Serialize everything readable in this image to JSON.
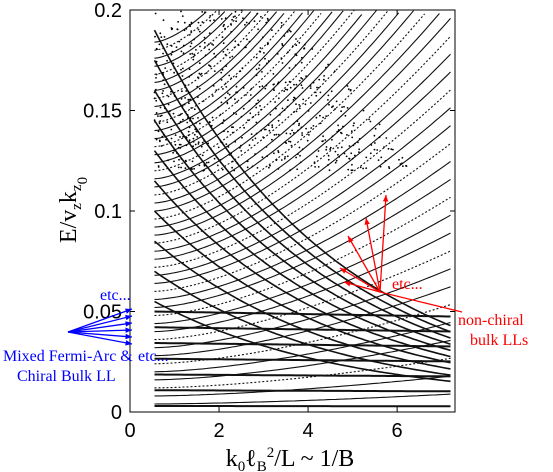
{
  "chart_data": {
    "type": "scatter",
    "title": "",
    "xlabel": "k₀ℓB²/L ~ 1/B",
    "ylabel": "E/vzkz0",
    "xlim": [
      0,
      7.3
    ],
    "ylim": [
      0,
      0.2
    ],
    "xticks": [
      "0",
      "2",
      "4",
      "6"
    ],
    "xtick_values": [
      0,
      2,
      4,
      6
    ],
    "yticks": [
      "0",
      "0.05",
      "0.1",
      "0.15",
      "0.2"
    ],
    "ytick_values": [
      0,
      0.05,
      0.1,
      0.15,
      0.2
    ],
    "x_range_data": [
      0.55,
      7.2
    ],
    "level_families": {
      "flat_levels": {
        "count": 7,
        "e_min": 0.003,
        "e_max": 0.05,
        "description": "nearly flat lines near bottom"
      },
      "chiral_levels": {
        "e_start_at_x0": [
          0.055,
          0.07,
          0.085,
          0.1,
          0.115,
          0.13,
          0.145,
          0.16,
          0.175,
          0.19
        ],
        "decay_to": 0.005
      },
      "nonchiral_levels": {
        "description": "curves rising with x; labelled non-chiral bulk LLs"
      }
    },
    "grid": false,
    "legend": "none"
  },
  "annotations": {
    "blue_label_line1": "Mixed Fermi-Arc &",
    "blue_label_line2": "Chiral Bulk LL",
    "blue_etc_top": "etc...",
    "blue_etc_bottom": "etc...",
    "red_etc": "etc...",
    "red_label_line1": "non-chiral",
    "red_label_line2": "bulk LLs",
    "blue_color": "#0000ff",
    "red_color": "#ff0000"
  }
}
